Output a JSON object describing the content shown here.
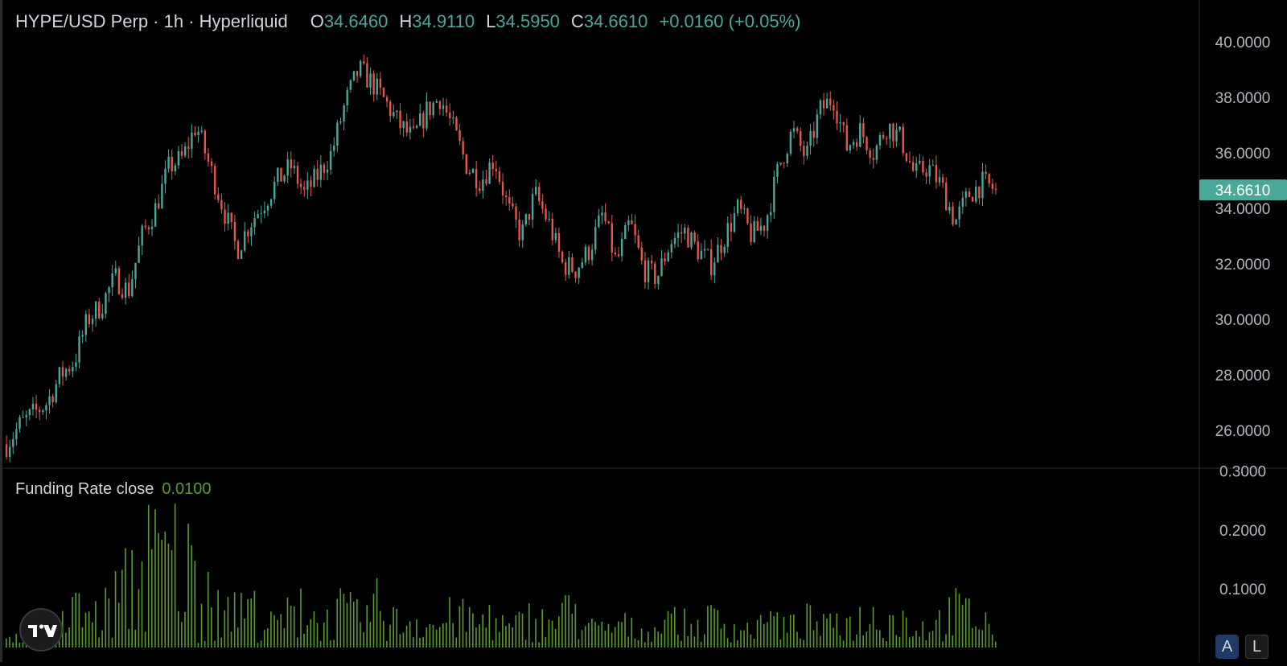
{
  "legend": {
    "symbol": "HYPE/USD Perp · 1h · Hyperliquid",
    "open_label": "O",
    "open_value": "34.6460",
    "high_label": "H",
    "high_value": "34.9110",
    "low_label": "L",
    "low_value": "34.5950",
    "close_label": "C",
    "close_value": "34.6610",
    "change": "+0.0160 (+0.05%)"
  },
  "funding_legend": {
    "label": "Funding Rate close",
    "value": "0.0100"
  },
  "price_scale": {
    "last_price_label": "34.6610"
  },
  "buttons": {
    "auto": "A",
    "log": "L"
  },
  "colors": {
    "up": "#4aa89a",
    "down": "#e0584f",
    "funding": "#5a9a2f",
    "last_price_bg": "#4aa89a"
  },
  "chart_data": [
    {
      "type": "candlestick",
      "title": "HYPE/USD Perp · 1h · Hyperliquid",
      "interval": "1h",
      "y_ticks": [
        "26.0000",
        "28.0000",
        "30.0000",
        "32.0000",
        "34.0000",
        "36.0000",
        "38.0000",
        "40.0000"
      ],
      "ylim": [
        24.7,
        41.5
      ],
      "last_close": 34.661,
      "approx_close_path": [
        25.5,
        26.2,
        26.6,
        27.0,
        28.0,
        28.5,
        30.0,
        30.5,
        31.5,
        31.0,
        33.0,
        34.0,
        35.5,
        35.8,
        37.0,
        35.5,
        34.0,
        32.5,
        33.5,
        34.2,
        35.0,
        35.5,
        34.5,
        35.2,
        36.0,
        37.8,
        39.0,
        38.5,
        37.8,
        37.0,
        36.5,
        37.5,
        38.0,
        36.8,
        35.5,
        35.0,
        35.8,
        34.0,
        33.0,
        34.5,
        33.5,
        32.0,
        31.8,
        32.5,
        33.8,
        32.0,
        33.5,
        31.8,
        31.5,
        32.8,
        33.2,
        32.5,
        32.0,
        33.0,
        34.0,
        33.0,
        33.5,
        35.5,
        36.8,
        35.8,
        37.5,
        38.0,
        36.2,
        36.8,
        36.0,
        37.0,
        36.5,
        35.2,
        35.5,
        34.8,
        33.5,
        34.5,
        34.9,
        34.661
      ]
    },
    {
      "type": "bar",
      "title": "Funding Rate close",
      "y_ticks": [
        "0.1000",
        "0.2000",
        "0.3000"
      ],
      "ylim": [
        0,
        0.305
      ],
      "last_value": 0.01,
      "approx_envelope": [
        0.01,
        0.02,
        0.03,
        0.06,
        0.1,
        0.08,
        0.15,
        0.2,
        0.25,
        0.27,
        0.22,
        0.1,
        0.08,
        0.12,
        0.05,
        0.08,
        0.1,
        0.06,
        0.1,
        0.07,
        0.12,
        0.06,
        0.08,
        0.05,
        0.09,
        0.06,
        0.07,
        0.04,
        0.08,
        0.06,
        0.09,
        0.05,
        0.04,
        0.06,
        0.03,
        0.05,
        0.07,
        0.05,
        0.08,
        0.05,
        0.04,
        0.06,
        0.05,
        0.07,
        0.05,
        0.06,
        0.08,
        0.09,
        0.06,
        0.05,
        0.07,
        0.1,
        0.08,
        0.06
      ]
    }
  ]
}
